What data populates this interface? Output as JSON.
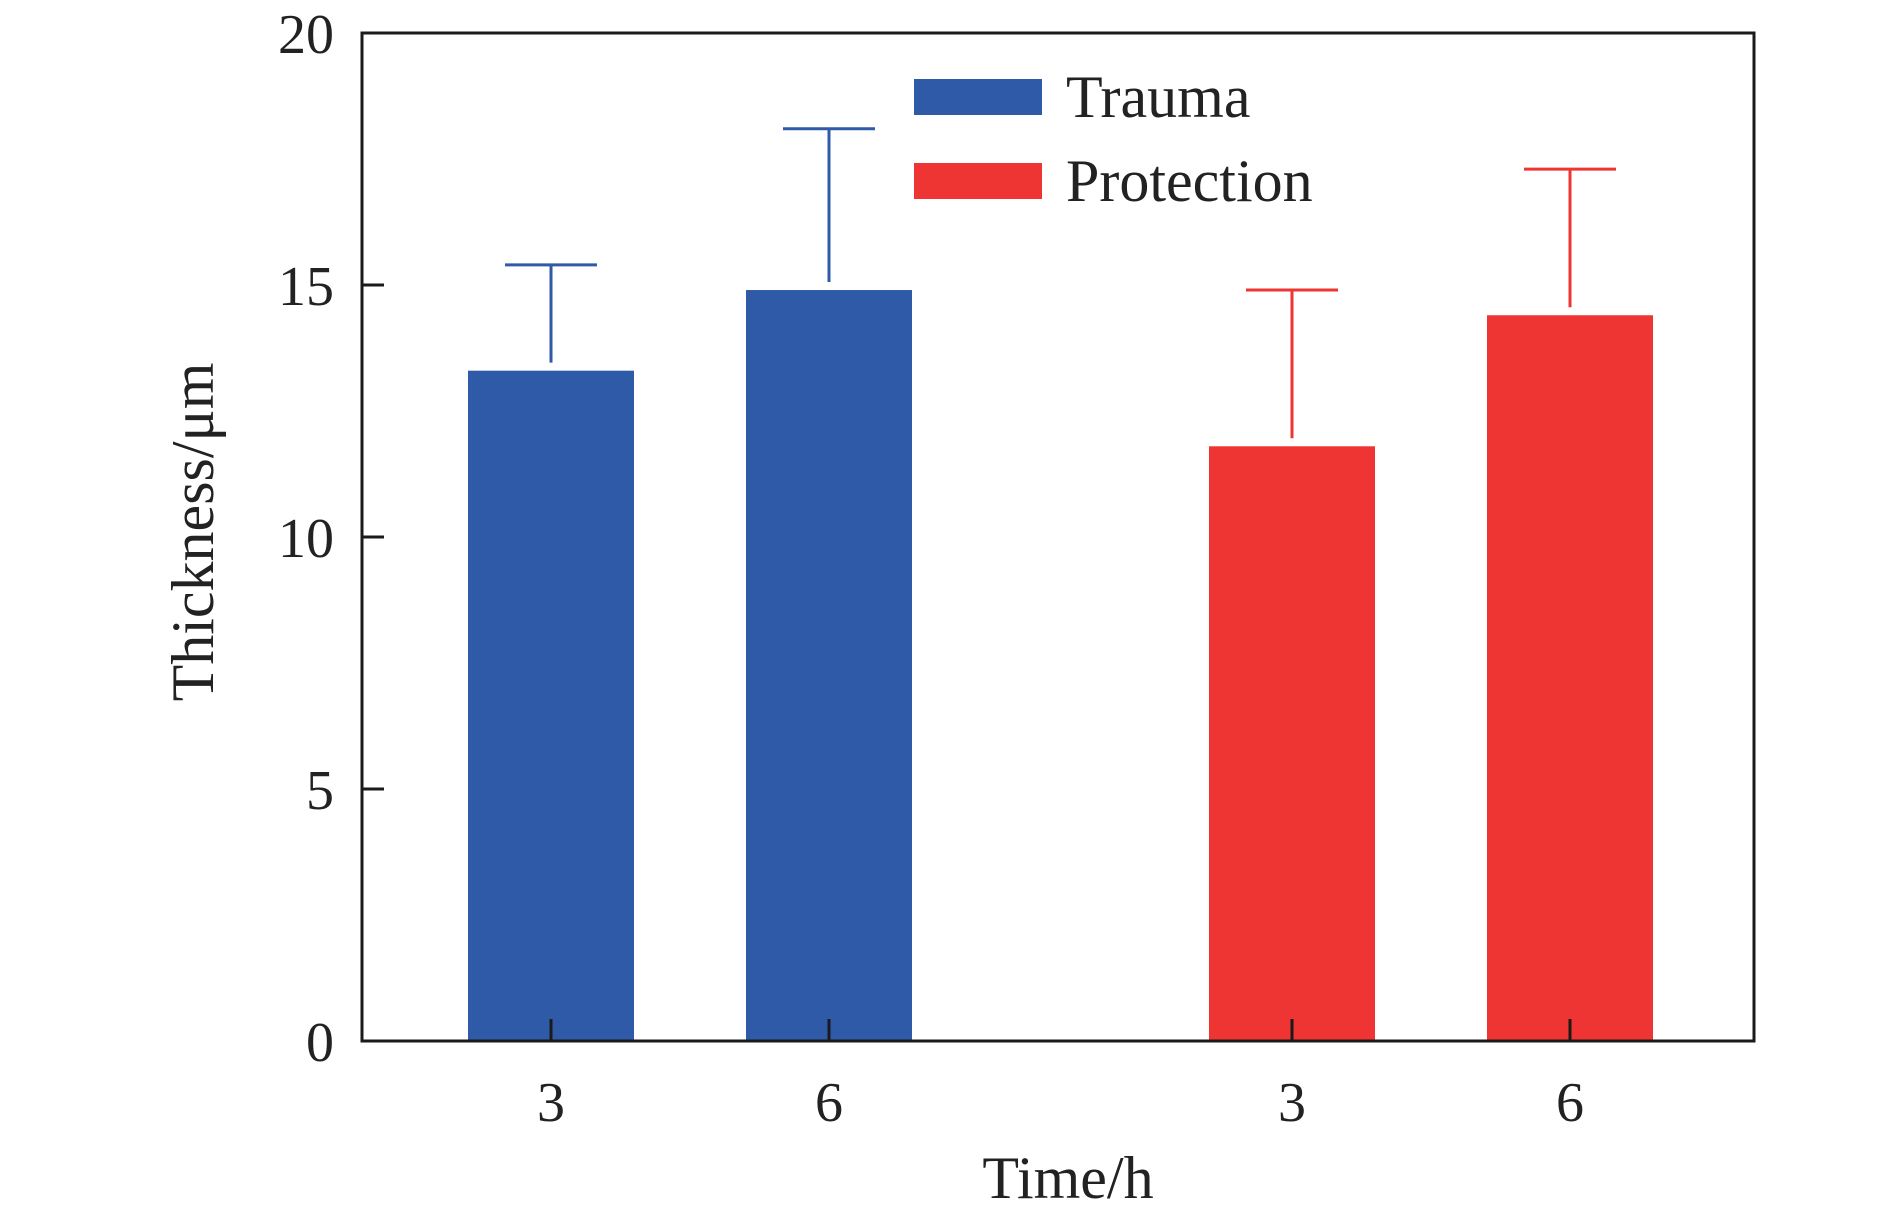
{
  "chart_data": {
    "type": "bar",
    "title": "",
    "xlabel": "Time/h",
    "ylabel": "Thickness/μm",
    "ylim": [
      0,
      20
    ],
    "yticks": [
      0,
      5,
      10,
      15,
      20
    ],
    "grid": false,
    "legend_position": "top-center",
    "groups": [
      {
        "series": "Trauma",
        "color": "#2E5AA8",
        "bars": [
          {
            "x": "3",
            "value": 13.3,
            "error": 2.1
          },
          {
            "x": "6",
            "value": 14.9,
            "error": 3.2
          }
        ]
      },
      {
        "series": "Protection",
        "color": "#EE3533",
        "bars": [
          {
            "x": "3",
            "value": 11.8,
            "error": 3.1
          },
          {
            "x": "6",
            "value": 14.4,
            "error": 2.9
          }
        ]
      }
    ],
    "legend": [
      {
        "name": "Trauma",
        "color": "#2E5AA8"
      },
      {
        "name": "Protection",
        "color": "#EE3533"
      }
    ]
  }
}
